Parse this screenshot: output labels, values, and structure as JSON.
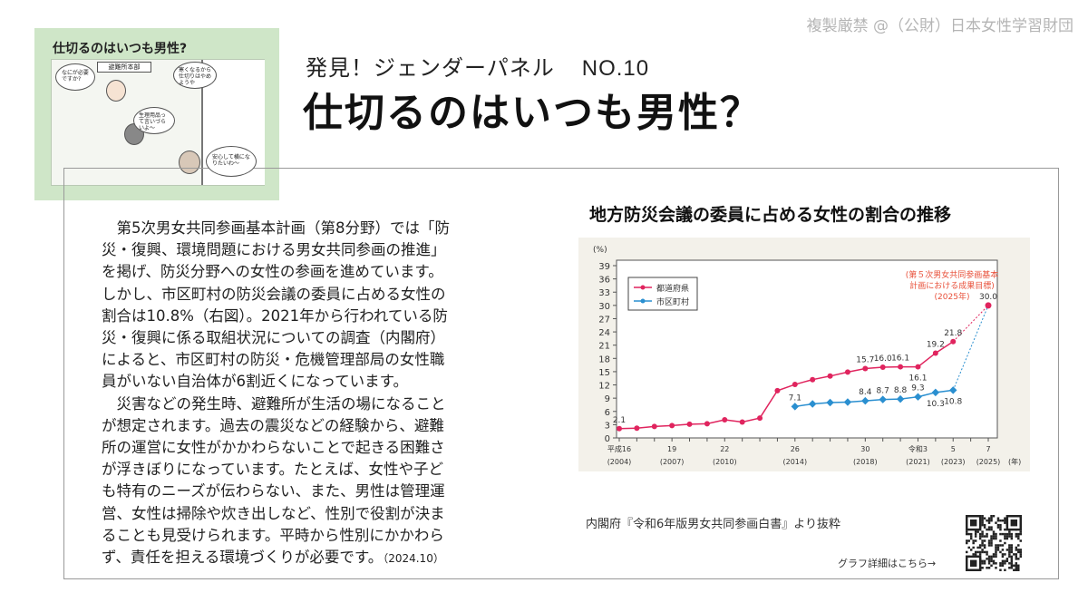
{
  "copyright": "複製厳禁 @（公財）日本女性学習財団",
  "illustration": {
    "title": "仕切るのはいつも男性?",
    "sign": "避難所本部",
    "bubbles": [
      "なにが必要ですか?",
      "生理用品って言いづらいよ〜",
      "寒くなるから仕切りはやめようや",
      "安心して横になりたいわ〜"
    ]
  },
  "header": {
    "subtitle": "発見！ジェンダーパネル",
    "number": "NO.10",
    "title": "仕切るのはいつも男性？"
  },
  "body": {
    "lines": [
      "　第5次男女共同参画基本計画（第8分野）では「防",
      "災・復興、環境問題における男女共同参画の推進」",
      "を掲げ、防災分野への女性の参画を進めています。",
      "しかし、市区町村の防災会議の委員に占める女性の",
      "割合は10.8%（右図）。2021年から行われている防",
      "災・復興に係る取組状況についての調査（内閣府）",
      "によると、市区町村の防災・危機管理部局の女性職",
      "員がいない自治体が6割近くになっています。",
      "　災害などの発生時、避難所が生活の場になること",
      "が想定されます。過去の震災などの経験から、避難",
      "所の運営に女性がかかわらないことで起きる困難さ",
      "が浮きぼりになっています。たとえば、女性や子ど",
      "も特有のニーズが伝わらない、また、男性は管理運",
      "営、女性は掃除や炊き出しなど、性別で役割が決ま",
      "ることも見受けられます。平時から性別にかかわら",
      "ず、責任を担える環境づくりが必要です。"
    ],
    "date": "（2024.10）"
  },
  "source": "内閣府『令和6年版男女共同参画白書』より抜粋",
  "detail_link": "グラフ詳細はこちら→",
  "chart_data": {
    "type": "line",
    "title": "地方防災会議の委員に占める女性の割合の推移",
    "ylabel": "(%)",
    "xunit": "(年)",
    "ylim": [
      0,
      39
    ],
    "yticks": [
      0,
      3,
      6,
      9,
      12,
      15,
      18,
      21,
      24,
      27,
      30,
      33,
      36,
      39
    ],
    "xlim": [
      2004,
      2025
    ],
    "xticks": [
      {
        "x": 2004,
        "l1": "平成16",
        "l2": "(2004)"
      },
      {
        "x": 2007,
        "l1": "19",
        "l2": "(2007)"
      },
      {
        "x": 2010,
        "l1": "22",
        "l2": "(2010)"
      },
      {
        "x": 2014,
        "l1": "26",
        "l2": "(2014)"
      },
      {
        "x": 2018,
        "l1": "30",
        "l2": "(2018)"
      },
      {
        "x": 2021,
        "l1": "令和3",
        "l2": "(2021)"
      },
      {
        "x": 2023,
        "l1": "5",
        "l2": "(2023)"
      },
      {
        "x": 2025,
        "l1": "7",
        "l2": "(2025)"
      }
    ],
    "annotation": [
      "(第５次男女共同参画基本",
      "計画における成果目標)",
      "(2025年)"
    ],
    "colors": {
      "pref": "#e0245e",
      "muni": "#2a8fd0",
      "annotation": "#e8503a"
    },
    "series": [
      {
        "name": "都道府県",
        "key": "pref",
        "x": [
          2004,
          2005,
          2006,
          2007,
          2008,
          2009,
          2010,
          2011,
          2012,
          2013,
          2014,
          2015,
          2016,
          2017,
          2018,
          2019,
          2020,
          2021,
          2022,
          2023
        ],
        "values": [
          2.1,
          2.2,
          2.6,
          2.8,
          3.1,
          3.2,
          4.1,
          3.6,
          4.5,
          10.7,
          12.1,
          13.2,
          14.0,
          14.9,
          15.7,
          16.0,
          16.1,
          16.1,
          19.2,
          21.8
        ],
        "labels": [
          {
            "x": 2004,
            "v": "2.1",
            "pos": "above"
          },
          {
            "x": 2018,
            "v": "15.7",
            "pos": "above"
          },
          {
            "x": 2019,
            "v": "16.0",
            "pos": "above"
          },
          {
            "x": 2020,
            "v": "16.1",
            "pos": "above"
          },
          {
            "x": 2021,
            "v": "16.1",
            "pos": "below"
          },
          {
            "x": 2022,
            "v": "19.2",
            "pos": "above"
          },
          {
            "x": 2023,
            "v": "21.8",
            "pos": "above"
          }
        ]
      },
      {
        "name": "市区町村",
        "key": "muni",
        "x": [
          2014,
          2015,
          2016,
          2017,
          2018,
          2019,
          2020,
          2021,
          2022,
          2023
        ],
        "values": [
          7.1,
          7.7,
          8.0,
          8.1,
          8.4,
          8.7,
          8.8,
          9.3,
          10.3,
          10.8
        ],
        "labels": [
          {
            "x": 2014,
            "v": "7.1",
            "pos": "above"
          },
          {
            "x": 2018,
            "v": "8.4",
            "pos": "above"
          },
          {
            "x": 2019,
            "v": "8.7",
            "pos": "above"
          },
          {
            "x": 2020,
            "v": "8.8",
            "pos": "above"
          },
          {
            "x": 2021,
            "v": "9.3",
            "pos": "above"
          },
          {
            "x": 2022,
            "v": "10.3",
            "pos": "below"
          },
          {
            "x": 2023,
            "v": "10.8",
            "pos": "below"
          }
        ]
      }
    ],
    "target": {
      "x": 2025,
      "value": 30.0,
      "label": "30.0"
    }
  }
}
